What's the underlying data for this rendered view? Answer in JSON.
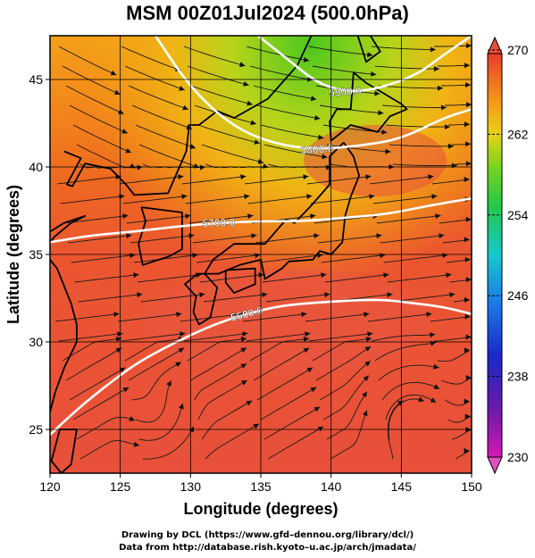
{
  "title": "MSM 00Z01Jul2024 (500.0hPa)",
  "xlabel": "Longitude (degrees)",
  "ylabel": "Latitude  (degrees)",
  "x_ticks": [
    "120",
    "125",
    "130",
    "135",
    "140",
    "145",
    "150"
  ],
  "y_ticks": [
    "25",
    "30",
    "35",
    "40",
    "45"
  ],
  "colorbar": {
    "ticks": [
      "270",
      "262",
      "254",
      "246",
      "238",
      "230"
    ],
    "min": 230,
    "max": 270
  },
  "contour_labels": [
    "5600.0",
    "5700.0",
    "5800.0",
    "5900.0"
  ],
  "credit_line1": "Drawing by DCL (https://www.gfd–dennou.org/library/dcl/)",
  "credit_line2": "Data from http://database.rish.kyoto–u.ac.jp/arch/jmadata/",
  "map_data": {
    "region": {
      "lon": [
        120,
        150
      ],
      "lat": [
        22.5,
        47.5
      ]
    },
    "field": "temperature (K) with geopotential height contours and wind streamlines",
    "contours": [
      {
        "label": "5600.0",
        "lon": [
          134.8,
          137,
          139,
          141,
          143,
          146,
          148,
          150
        ],
        "lat": [
          47.5,
          46.1,
          44.8,
          44.3,
          44.4,
          45.2,
          46.4,
          47.5
        ]
      },
      {
        "label": "5700.0",
        "lon": [
          127.5,
          130,
          133,
          136,
          139,
          142,
          145,
          148,
          150
        ],
        "lat": [
          47.5,
          44.5,
          42.3,
          41.3,
          41.0,
          41.2,
          41.6,
          42.8,
          43.3
        ]
      },
      {
        "label": "5800.0",
        "lon": [
          120,
          123,
          126,
          129,
          132,
          135,
          138,
          141,
          144,
          147,
          150
        ],
        "lat": [
          35.7,
          36.1,
          36.3,
          36.6,
          36.8,
          36.9,
          36.9,
          37.1,
          37.3,
          37.8,
          38.2
        ]
      },
      {
        "label": "5900.0",
        "lon": [
          120,
          122,
          124,
          126,
          128,
          130,
          132,
          134,
          136,
          138,
          140,
          142,
          144,
          146,
          148,
          150
        ],
        "lat": [
          24.7,
          26.2,
          27.5,
          28.7,
          29.6,
          30.4,
          31.1,
          31.6,
          32.0,
          32.2,
          32.3,
          32.4,
          32.4,
          32.2,
          32.0,
          31.6
        ]
      }
    ]
  }
}
